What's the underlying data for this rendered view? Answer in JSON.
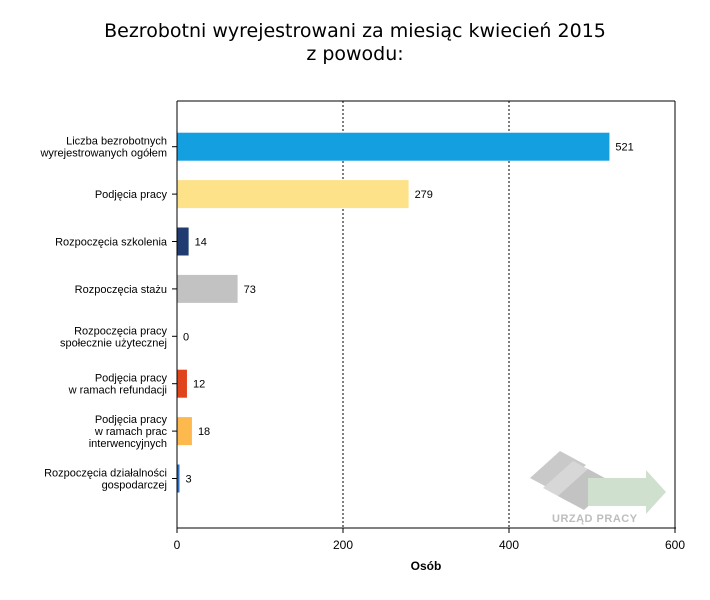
{
  "chart_data": {
    "type": "bar",
    "orientation": "horizontal",
    "title_lines": [
      "Bezrobotni wyrejestrowani za miesiąc kwiecień 2015",
      "z powodu:"
    ],
    "xlabel": "Osób",
    "xlim": [
      0,
      600
    ],
    "xticks": [
      "0",
      "200",
      "400",
      "600"
    ],
    "grid": "vertical dashed",
    "categories": [
      [
        "Liczba bezrobotnych",
        "wyrejestrowanych ogółem"
      ],
      [
        "Podjęcia pracy"
      ],
      [
        "Rozpoczęcia szkolenia"
      ],
      [
        "Rozpoczęcia stażu"
      ],
      [
        "Rozpoczęcia pracy",
        "społecznie użytecznej"
      ],
      [
        "Podjęcia pracy",
        "w ramach refundacji"
      ],
      [
        "Podjęcia pracy",
        "w ramach prac",
        "interwencyjnych"
      ],
      [
        "Rozpoczęcia działalności",
        "gospodarczej"
      ]
    ],
    "values": [
      521,
      279,
      14,
      73,
      0,
      12,
      18,
      3
    ],
    "colors": [
      "#139fe0",
      "#fee28a",
      "#1f3b6f",
      "#c2c2c2",
      "#ffffff",
      "#e0441b",
      "#fdb94e",
      "#2f6fbf"
    ]
  },
  "logo": {
    "text": "URZĄD PRACY",
    "icon": "urzad-pracy-logo-icon"
  }
}
